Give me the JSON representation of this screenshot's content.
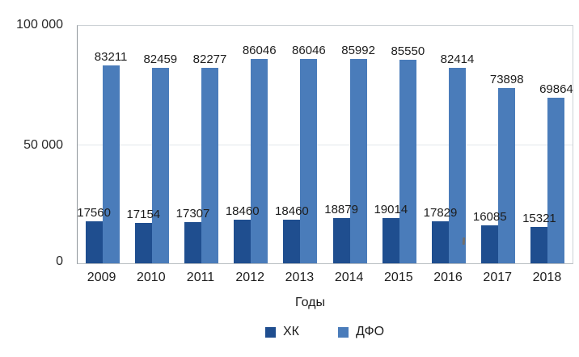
{
  "chart_data": {
    "type": "bar",
    "title": "",
    "categories": [
      "2009",
      "2010",
      "2011",
      "2012",
      "2013",
      "2014",
      "2015",
      "2016",
      "2017",
      "2018"
    ],
    "series": [
      {
        "name": "ХК",
        "color": "#1f4e8f",
        "values": [
          17560,
          17154,
          17307,
          18460,
          18460,
          18879,
          19014,
          17829,
          16085,
          15321
        ]
      },
      {
        "name": "ДФО",
        "color": "#4a7cba",
        "values": [
          83211,
          82459,
          82277,
          86046,
          86046,
          85992,
          85550,
          82414,
          73898,
          69864
        ]
      }
    ],
    "xlabel": "Годы",
    "ylabel": "",
    "ylim": [
      0,
      100000
    ],
    "yticks": [
      {
        "value": 0,
        "label": "0"
      },
      {
        "value": 50000,
        "label": "50 000"
      },
      {
        "value": 100000,
        "label": "100 000"
      }
    ],
    "grid": true,
    "legend_position": "bottom",
    "bar_data_labels": true
  }
}
